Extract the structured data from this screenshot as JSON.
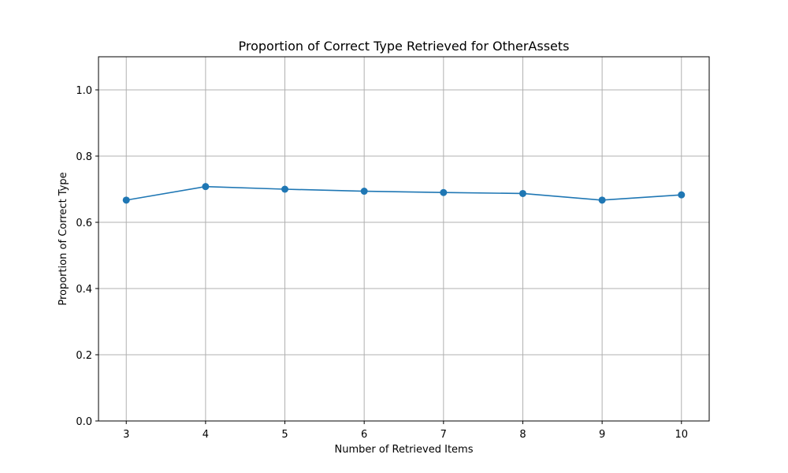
{
  "chart_data": {
    "type": "line",
    "title": "Proportion of Correct Type Retrieved for OtherAssets",
    "xlabel": "Number of Retrieved Items",
    "ylabel": "Proportion of Correct Type",
    "x": [
      3,
      4,
      5,
      6,
      7,
      8,
      9,
      10
    ],
    "series": [
      {
        "values": [
          0.667,
          0.708,
          0.7,
          0.694,
          0.69,
          0.687,
          0.667,
          0.683
        ]
      }
    ],
    "xlim": [
      2.65,
      10.35
    ],
    "ylim": [
      0,
      1.1
    ],
    "xticks": [
      3,
      4,
      5,
      6,
      7,
      8,
      9,
      10
    ],
    "yticks": [
      0.0,
      0.2,
      0.4,
      0.6,
      0.8,
      1.0
    ],
    "ytick_labels": [
      "0.0",
      "0.2",
      "0.4",
      "0.6",
      "0.8",
      "1.0"
    ],
    "grid": true,
    "marker": "circle",
    "line_color": "#1f77b4"
  }
}
